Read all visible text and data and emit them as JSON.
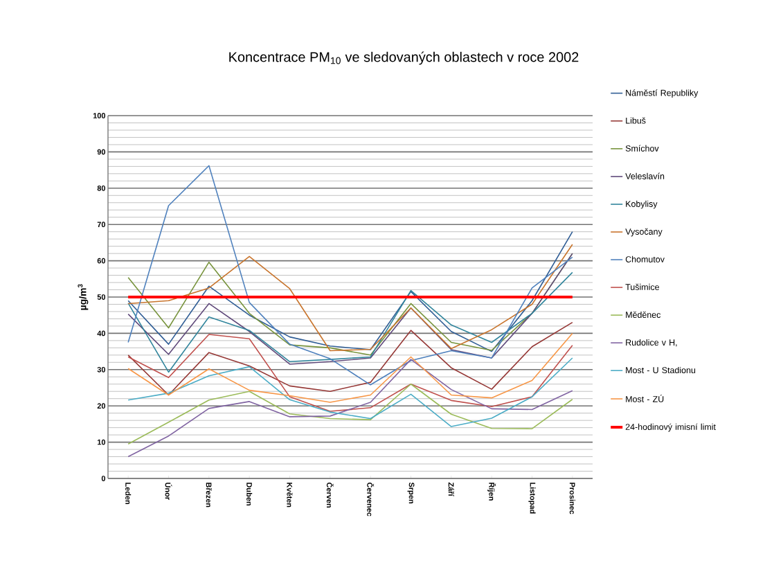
{
  "chart_data": {
    "type": "line",
    "title": "Koncentrace PM$_{10}$ ve sledovaných oblastech v roce 2002",
    "ylabel": "µg/m$^{3}$",
    "categories": [
      "Leden",
      "Únor",
      "Březen",
      "Duben",
      "Květen",
      "Červen",
      "Červenec",
      "Srpen",
      "Září",
      "Říjen",
      "Listopad",
      "Prosinec"
    ],
    "ylim": [
      0,
      100
    ],
    "yticks": [
      0,
      10,
      20,
      30,
      40,
      50,
      60,
      70,
      80,
      90,
      100
    ],
    "grid": "y",
    "legend": "right",
    "marker": "none",
    "line_style": "solid",
    "series": [
      {
        "name": "Náměstí Republiky",
        "color": "#2f5d95",
        "values": [
          49,
          37,
          53,
          45,
          39,
          36.5,
          35.5,
          51.5,
          40.5,
          35,
          49,
          68
        ]
      },
      {
        "name": "Libuš",
        "color": "#953735",
        "values": [
          34,
          23,
          34.7,
          31,
          25.5,
          24,
          26.5,
          40.8,
          30.5,
          24.6,
          36.3,
          43
        ]
      },
      {
        "name": "Smíchov",
        "color": "#77933c",
        "values": [
          55.4,
          41.5,
          59.6,
          45.5,
          36.8,
          36,
          34,
          48.2,
          37.5,
          35.3,
          45.5,
          62
        ]
      },
      {
        "name": "Veleslavín",
        "color": "#5f497a",
        "values": [
          45.3,
          34.2,
          48.2,
          40.5,
          31.5,
          32.2,
          33.2,
          47,
          35.5,
          33.2,
          45.5,
          62
        ]
      },
      {
        "name": "Kobylisy",
        "color": "#31859c",
        "values": [
          48.3,
          29.3,
          44.5,
          40.8,
          32.2,
          32.8,
          33.5,
          51.8,
          42.3,
          37.5,
          45.5,
          56.8
        ]
      },
      {
        "name": "Vysočany",
        "color": "#c8742c",
        "values": [
          48.2,
          49,
          52.5,
          61.2,
          52.3,
          35.2,
          35.6,
          47,
          35.8,
          41,
          48,
          64.5
        ]
      },
      {
        "name": "Chomutov",
        "color": "#4f81bd",
        "values": [
          37.5,
          75.2,
          86.2,
          48.5,
          37,
          33,
          25.8,
          32.5,
          35.2,
          33.2,
          52.5,
          61
        ]
      },
      {
        "name": "Tušimice",
        "color": "#c0504d",
        "values": [
          33.5,
          27.8,
          39.7,
          38.5,
          22.5,
          18.5,
          19.5,
          26,
          21.5,
          19.8,
          22.5,
          36.7
        ]
      },
      {
        "name": "Měděnec",
        "color": "#9bbb59",
        "values": [
          9.5,
          15.5,
          21.6,
          24,
          17.8,
          16.5,
          16.2,
          26,
          17.7,
          13.8,
          13.7,
          21.8
        ]
      },
      {
        "name": "Rudolice v H,",
        "color": "#8064a2",
        "values": [
          6,
          11.7,
          19.3,
          21.2,
          17,
          17.2,
          21,
          32.8,
          24.5,
          19.2,
          19,
          24.2
        ]
      },
      {
        "name": "Most - U Stadionu",
        "color": "#4bacc6",
        "values": [
          21.6,
          23.5,
          28.3,
          30.8,
          21.7,
          18.3,
          16.5,
          23.2,
          14.3,
          16.6,
          22.5,
          33.2
        ]
      },
      {
        "name": "Most - ZÚ",
        "color": "#f79646",
        "values": [
          30.3,
          23,
          30.2,
          24.3,
          22.8,
          21,
          23,
          33.5,
          23,
          22.2,
          27,
          40
        ]
      }
    ],
    "ref_lines": [
      {
        "axis": "y",
        "value": 50,
        "label": "24-hodinový imisní limit",
        "color": "#ff0000"
      }
    ]
  }
}
